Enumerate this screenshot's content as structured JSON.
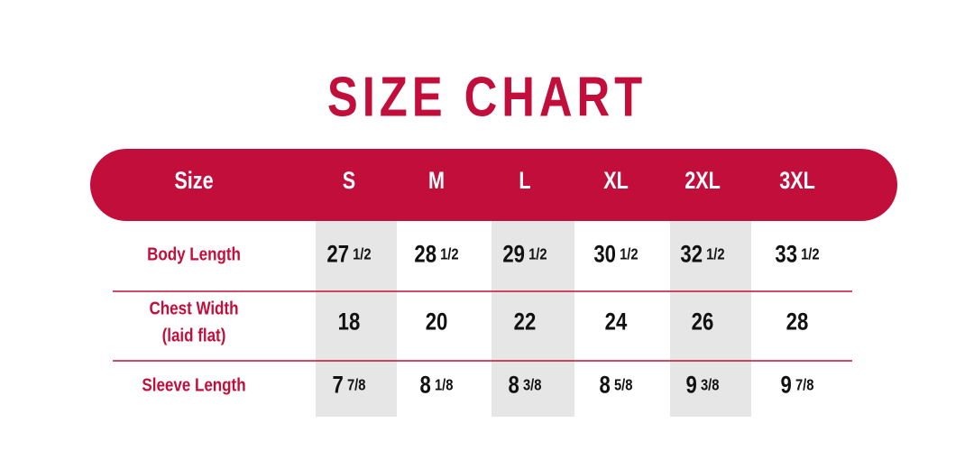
{
  "title": "SIZE CHART",
  "table": {
    "header": [
      "Size",
      "S",
      "M",
      "L",
      "XL",
      "2XL",
      "3XL"
    ],
    "rows": [
      {
        "label": [
          "Body Length"
        ],
        "cells": [
          [
            "27",
            "1/2"
          ],
          [
            "28",
            "1/2"
          ],
          [
            "29",
            "1/2"
          ],
          [
            "30",
            "1/2"
          ],
          [
            "32",
            "1/2"
          ],
          [
            "33",
            "1/2"
          ]
        ]
      },
      {
        "label": [
          "Chest Width",
          "(laid flat)"
        ],
        "cells": [
          [
            "18"
          ],
          [
            "20"
          ],
          [
            "22"
          ],
          [
            "24"
          ],
          [
            "26"
          ],
          [
            "28"
          ]
        ]
      },
      {
        "label": [
          "Sleeve Length"
        ],
        "cells": [
          [
            "7",
            "7/8"
          ],
          [
            "8",
            "1/8"
          ],
          [
            "8",
            "3/8"
          ],
          [
            "8",
            "5/8"
          ],
          [
            "9",
            "3/8"
          ],
          [
            "9",
            "7/8"
          ]
        ]
      }
    ]
  }
}
